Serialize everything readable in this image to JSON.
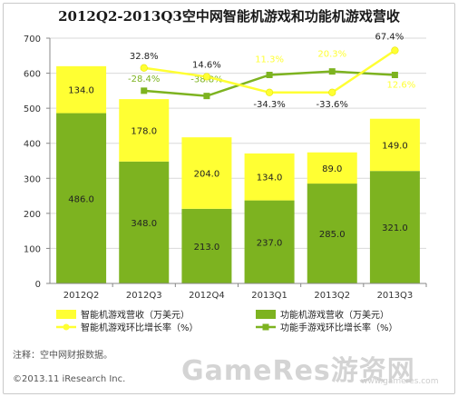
{
  "title": "2012Q2-2013Q3空中网智能机游戏和功能机游戏营收",
  "note": "注释：空中网财报数据。",
  "copyright": "©2013.11 iResearch Inc.",
  "watermark": "GameRes游资网",
  "watermark_url": "www.gameres.com",
  "colors": {
    "smart": "#ffff33",
    "feature": "#7db320",
    "smart_line": "#ffff33",
    "feature_line": "#7db320"
  },
  "chart_data": {
    "type": "bar",
    "stacked": true,
    "categories": [
      "2012Q2",
      "2012Q3",
      "2012Q4",
      "2013Q1",
      "2013Q2",
      "2013Q3"
    ],
    "ylim": [
      0,
      700
    ],
    "yticks": [
      0,
      100,
      200,
      300,
      400,
      500,
      600,
      700
    ],
    "series": [
      {
        "name": "功能机游戏营收（万美元）",
        "kind": "bar",
        "values": [
          486.0,
          348.0,
          213.0,
          237.0,
          285.0,
          321.0
        ],
        "labels": [
          "486.0",
          "348.0",
          "213.0",
          "237.0",
          "285.0",
          "321.0"
        ]
      },
      {
        "name": "智能机游戏营收（万美元）",
        "kind": "bar",
        "values": [
          134.0,
          178.0,
          204.0,
          134.0,
          89.0,
          149.0
        ],
        "labels": [
          "134.0",
          "178.0",
          "204.0",
          "134.0",
          "89.0",
          "149.0"
        ]
      },
      {
        "name": "智能机游戏环比增长率（%）",
        "kind": "line",
        "plot_values": [
          null,
          615,
          590,
          545,
          545,
          665
        ],
        "labels": [
          "",
          "32.8%",
          "14.6%",
          "-34.3%",
          "-33.6%",
          "67.4%"
        ]
      },
      {
        "name": "功能手游戏环比增长率（%）",
        "kind": "line",
        "plot_values": [
          null,
          550,
          535,
          595,
          605,
          595
        ],
        "labels": [
          "",
          "-28.4%",
          "-38.8%",
          "11.3%",
          "20.3%",
          "12.6%"
        ]
      }
    ]
  }
}
